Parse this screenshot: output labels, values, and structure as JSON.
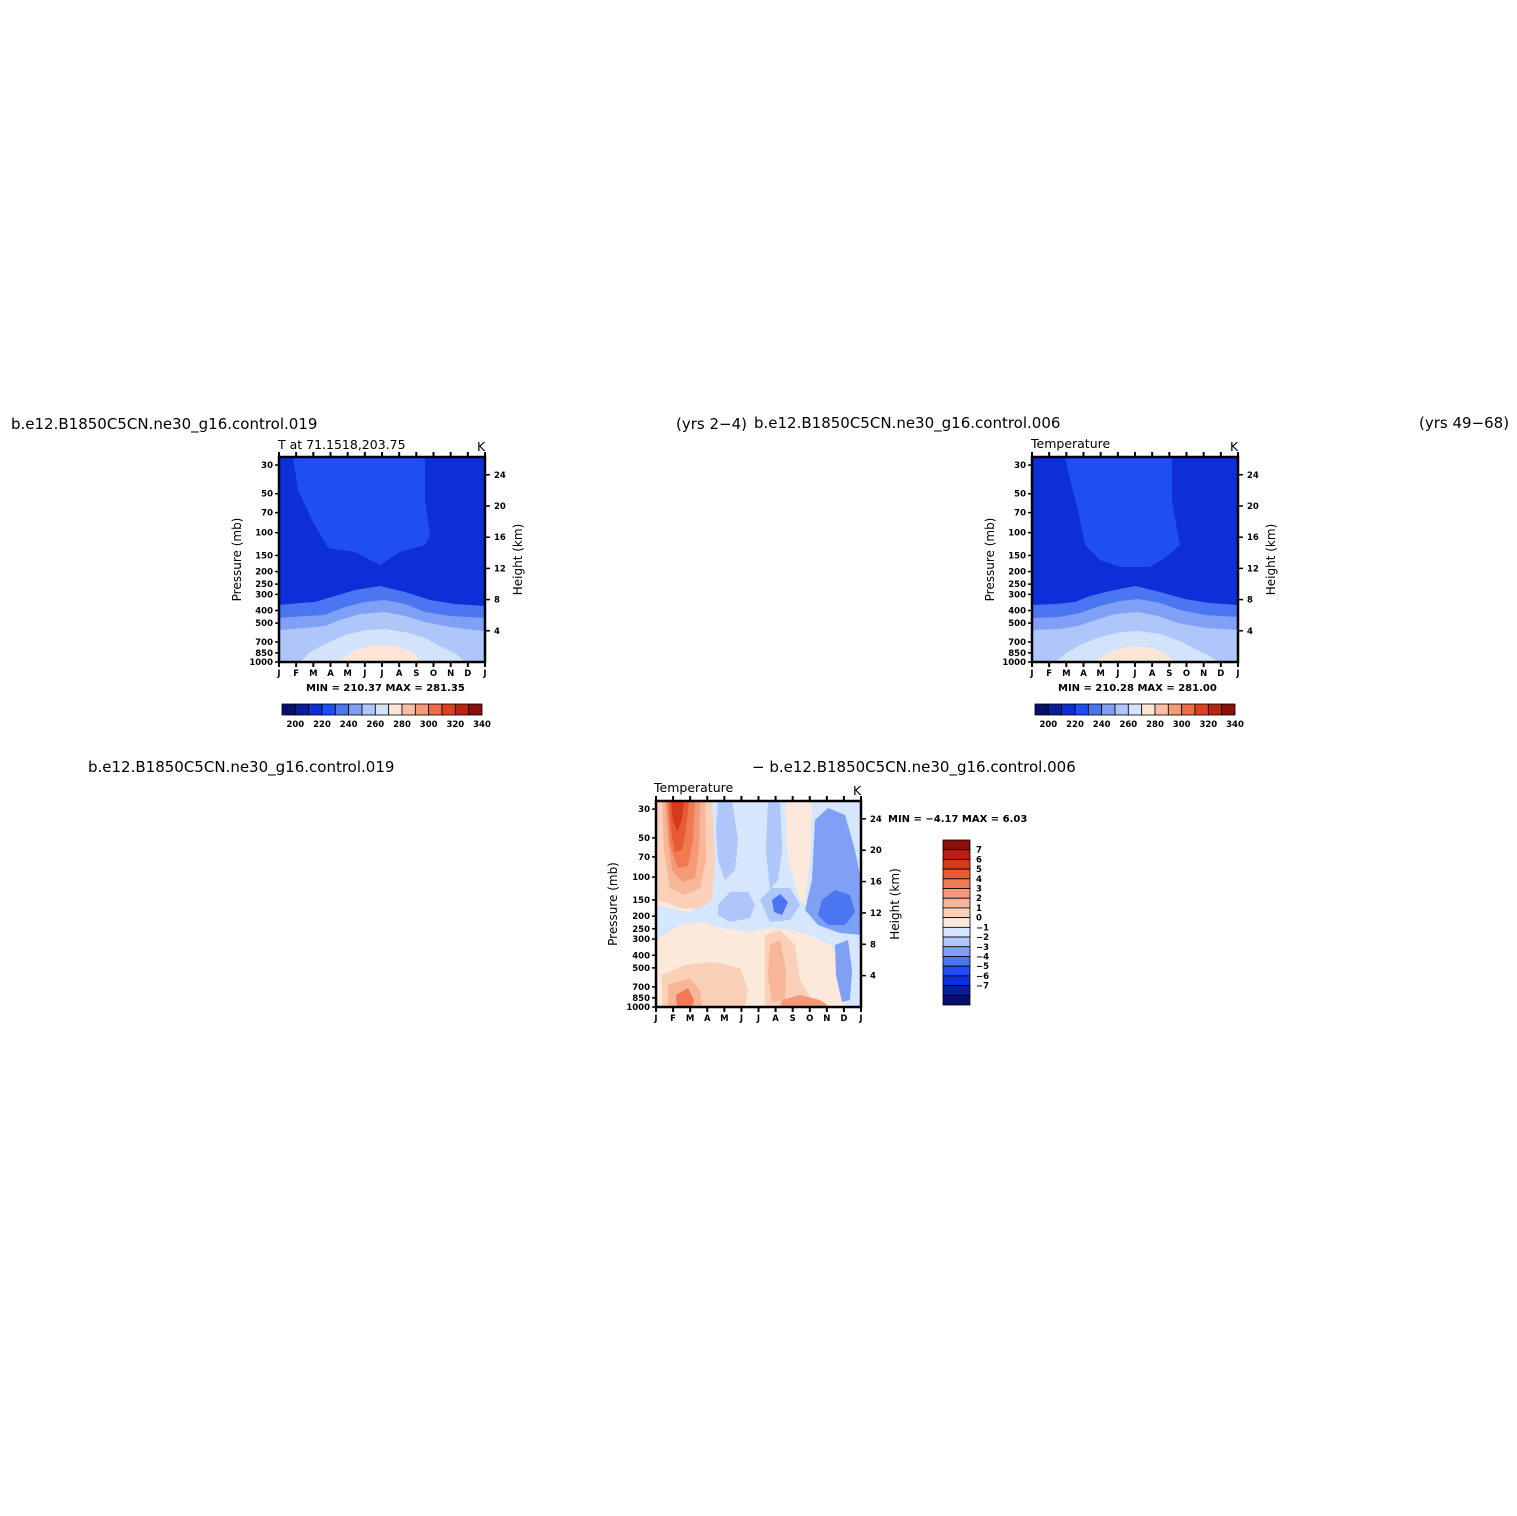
{
  "colors": {
    "temp_scale": [
      "#08106e",
      "#0a1d9c",
      "#0d2ed8",
      "#1f4ef5",
      "#4a76f2",
      "#7fa0f5",
      "#aec6fa",
      "#d2e3fb",
      "#fde5d6",
      "#f9c0a3",
      "#f59a78",
      "#f06c45",
      "#e0401c",
      "#bc2311",
      "#8c0f0c"
    ],
    "diff_scale": [
      "#08106e",
      "#0a1d9c",
      "#0d2ed8",
      "#1f4ef5",
      "#4a76f2",
      "#7fa0f5",
      "#aec6fa",
      "#d6e6fd",
      "#fde9dc",
      "#fbd0b8",
      "#f8b598",
      "#f59a78",
      "#f07a52",
      "#e85a32",
      "#d63a1a",
      "#b32010",
      "#8c0f0c"
    ]
  },
  "panel1": {
    "case": "b.e12.B1850C5CN.ne30_g16.control.019",
    "years": "(yrs  2−4)",
    "left_title": "T  at  71.1518,203.75",
    "unit": "K",
    "minmax": "MIN  =  210.37  MAX  =  281.35"
  },
  "panel2": {
    "case": "b.e12.B1850C5CN.ne30_g16.control.006",
    "years": "(yrs  49−68)",
    "left_title": "Temperature",
    "unit": "K",
    "minmax": "MIN  =  210.28  MAX  =  281.00"
  },
  "panel3": {
    "case_a": "b.e12.B1850C5CN.ne30_g16.control.019",
    "case_b": "−  b.e12.B1850C5CN.ne30_g16.control.006",
    "left_title": "Temperature",
    "unit": "K",
    "minmax": "MIN  =    −4.17  MAX  =     6.03"
  },
  "chart_data": [
    {
      "type": "heatmap",
      "title": "T  at  71.1518,203.75",
      "ylabel": "Pressure  (mb)",
      "ylabel_right": "Height  (km)",
      "x_tick_labels": [
        "J",
        "F",
        "M",
        "A",
        "M",
        "J",
        "J",
        "A",
        "S",
        "O",
        "N",
        "D",
        "J"
      ],
      "y_tick_labels": [
        "30",
        "50",
        "70",
        "100",
        "150",
        "200",
        "250",
        "300",
        "400",
        "500",
        "700",
        "850",
        "1000"
      ],
      "y_right_tick_labels": [
        "24",
        "20",
        "16",
        "12",
        "8",
        "4"
      ],
      "colorbar_labels": [
        "200",
        "220",
        "240",
        "260",
        "280",
        "300",
        "320",
        "340"
      ],
      "ylim": [
        1000,
        30
      ],
      "min": 210.37,
      "max": 281.35
    },
    {
      "type": "heatmap",
      "title": "Temperature",
      "ylabel": "Pressure  (mb)",
      "ylabel_right": "Height  (km)",
      "x_tick_labels": [
        "J",
        "F",
        "M",
        "A",
        "M",
        "J",
        "J",
        "A",
        "S",
        "O",
        "N",
        "D",
        "J"
      ],
      "y_tick_labels": [
        "30",
        "50",
        "70",
        "100",
        "150",
        "200",
        "250",
        "300",
        "400",
        "500",
        "700",
        "850",
        "1000"
      ],
      "y_right_tick_labels": [
        "24",
        "20",
        "16",
        "12",
        "8",
        "4"
      ],
      "colorbar_labels": [
        "200",
        "220",
        "240",
        "260",
        "280",
        "300",
        "320",
        "340"
      ],
      "ylim": [
        1000,
        30
      ],
      "min": 210.28,
      "max": 281.0
    },
    {
      "type": "heatmap",
      "title": "Temperature",
      "ylabel": "Pressure  (mb)",
      "ylabel_right": "Height  (km)",
      "x_tick_labels": [
        "J",
        "F",
        "M",
        "A",
        "M",
        "J",
        "J",
        "A",
        "S",
        "O",
        "N",
        "D",
        "J"
      ],
      "y_tick_labels": [
        "30",
        "50",
        "70",
        "100",
        "150",
        "200",
        "250",
        "300",
        "400",
        "500",
        "700",
        "850",
        "1000"
      ],
      "y_right_tick_labels": [
        "24",
        "20",
        "16",
        "12",
        "8",
        "4"
      ],
      "colorbar_labels": [
        "7",
        "6",
        "5",
        "4",
        "3",
        "2",
        "1",
        "0",
        "−1",
        "−2",
        "−3",
        "−4",
        "−5",
        "−6",
        "−7"
      ],
      "ylim": [
        1000,
        30
      ],
      "min": -4.17,
      "max": 6.03
    }
  ]
}
